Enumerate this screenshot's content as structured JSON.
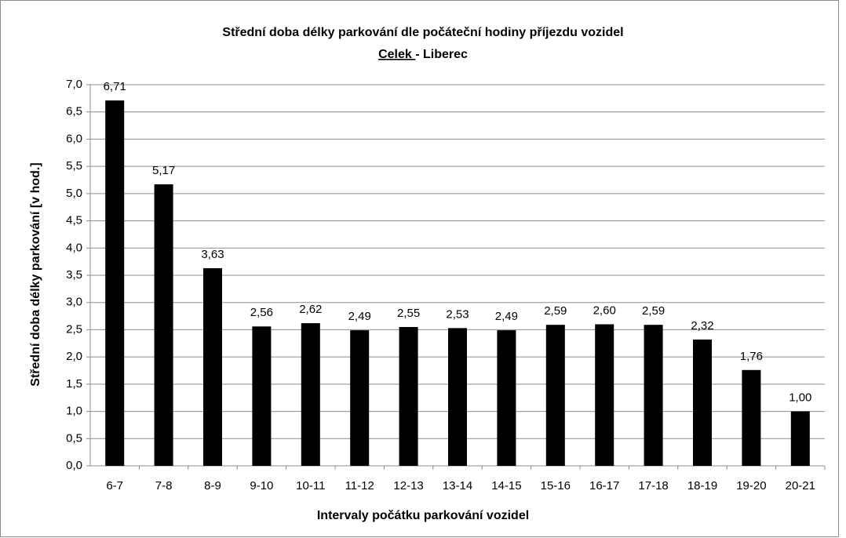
{
  "chart_data": {
    "type": "bar",
    "title": "Střední doba délky parkování dle počáteční hodiny příjezdu vozidel",
    "subtitle": [
      "Celek ",
      "- Liberec"
    ],
    "x_label": "Intervaly počátku parkování vozidel",
    "y_label": "Střední doba délky parkování [v hod.]",
    "categories": [
      "6-7",
      "7-8",
      "8-9",
      "9-10",
      "10-11",
      "11-12",
      "12-13",
      "13-14",
      "14-15",
      "15-16",
      "16-17",
      "17-18",
      "18-19",
      "19-20",
      "20-21"
    ],
    "values": [
      6.71,
      5.17,
      3.63,
      2.56,
      2.62,
      2.49,
      2.55,
      2.53,
      2.49,
      2.59,
      2.6,
      2.59,
      2.32,
      1.76,
      1.0
    ],
    "value_labels": [
      "6,71",
      "5,17",
      "3,63",
      "2,56",
      "2,62",
      "2,49",
      "2,55",
      "2,53",
      "2,49",
      "2,59",
      "2,60",
      "2,59",
      "2,32",
      "1,76",
      "1,00"
    ],
    "color": "#000000",
    "ylim": [
      0,
      7
    ],
    "yticks": [
      {
        "value": 0,
        "label": "0,0"
      },
      {
        "value": 0.5,
        "label": "0,5"
      },
      {
        "value": 1,
        "label": "1,0"
      },
      {
        "value": 1.5,
        "label": "1,5"
      },
      {
        "value": 2,
        "label": "2,0"
      },
      {
        "value": 2.5,
        "label": "2,5"
      },
      {
        "value": 3,
        "label": "3,0"
      },
      {
        "value": 3.5,
        "label": "3,5"
      },
      {
        "value": 4,
        "label": "4,0"
      },
      {
        "value": 4.5,
        "label": "4,5"
      },
      {
        "value": 5,
        "label": "5,0"
      },
      {
        "value": 5.5,
        "label": "5,5"
      },
      {
        "value": 6,
        "label": "6,0"
      },
      {
        "value": 6.5,
        "label": "6,5"
      },
      {
        "value": 7,
        "label": "7,0"
      }
    ],
    "grid": true
  }
}
